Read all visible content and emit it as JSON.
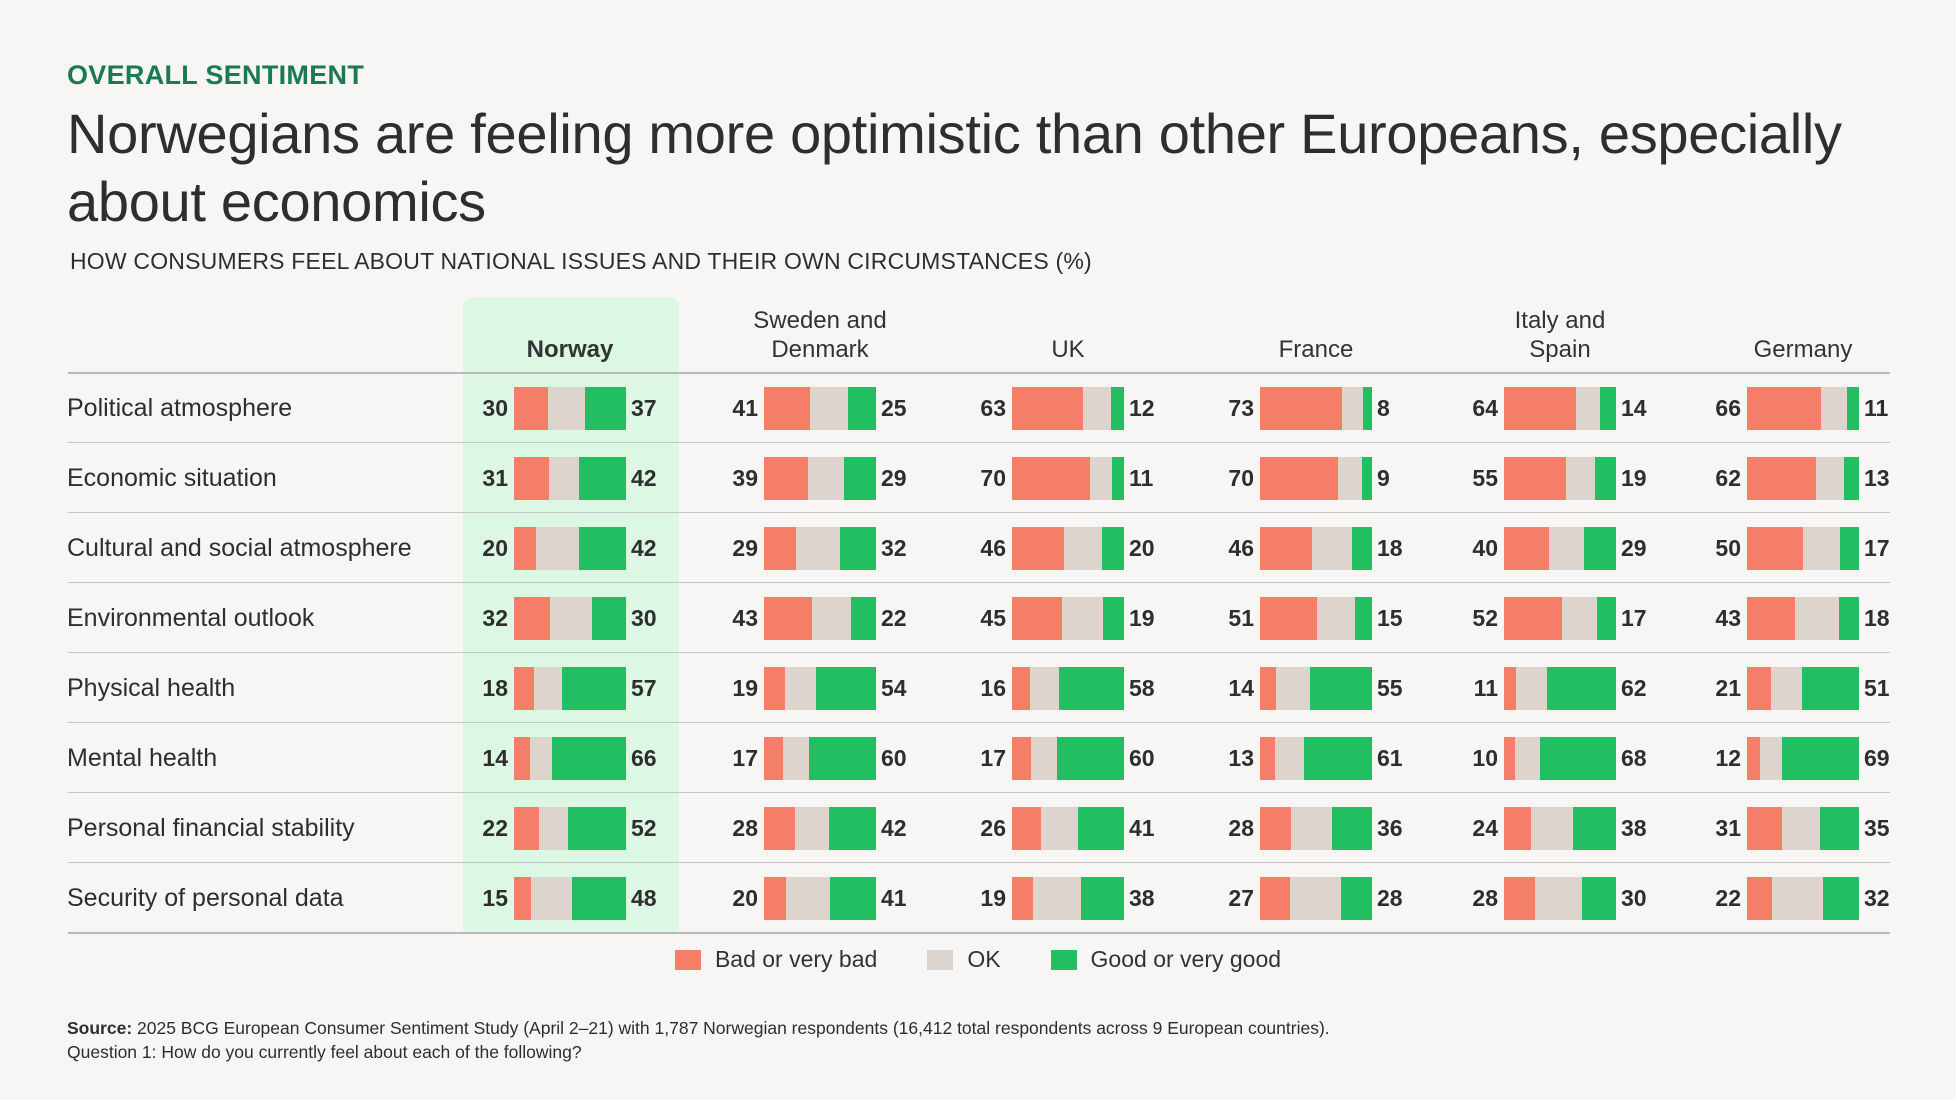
{
  "eyebrow": "OVERALL SENTIMENT",
  "title": "Norwegians are feeling more optimistic than other Europeans, especially about economics",
  "subtitle": "HOW CONSUMERS FEEL ABOUT NATIONAL ISSUES AND THEIR OWN CIRCUMSTANCES (%)",
  "colors": {
    "bad": "#f47e68",
    "ok": "#ddd5cd",
    "good": "#22bf62",
    "highlight": "#dcf7e3",
    "eyebrow": "#1a7a52"
  },
  "legend": [
    {
      "key": "bad",
      "label": "Bad or very bad"
    },
    {
      "key": "ok",
      "label": "OK"
    },
    {
      "key": "good",
      "label": "Good or very good"
    }
  ],
  "footer": {
    "source_label": "Source:",
    "source_text": " 2025 BCG European Consumer Sentiment Study (April 2–21) with 1,787 Norwegian respondents (16,412 total respondents across 9 European countries).",
    "question": "Question 1: How do you currently feel about each of the following?"
  },
  "chart_data": {
    "type": "bar",
    "subtype": "stacked-horizontal-100",
    "title": "Norwegians are feeling more optimistic than other Europeans, especially about economics",
    "subtitle": "HOW CONSUMERS FEEL ABOUT NATIONAL ISSUES AND THEIR OWN CIRCUMSTANCES (%)",
    "xlabel": "",
    "ylabel": "",
    "xlim": [
      0,
      100
    ],
    "legend_position": "bottom",
    "highlighted_column": "Norway",
    "columns": [
      "Norway",
      "Sweden and Denmark",
      "UK",
      "France",
      "Italy and Spain",
      "Germany"
    ],
    "categories": [
      "Political atmosphere",
      "Economic situation",
      "Cultural and social atmosphere",
      "Environmental outlook",
      "Physical health",
      "Mental health",
      "Personal financial stability",
      "Security of personal data"
    ],
    "series": [
      {
        "name": "Bad or very bad",
        "key": "bad",
        "values": [
          [
            30,
            41,
            63,
            73,
            64,
            66
          ],
          [
            31,
            39,
            70,
            70,
            55,
            62
          ],
          [
            20,
            29,
            46,
            46,
            40,
            50
          ],
          [
            32,
            43,
            45,
            51,
            52,
            43
          ],
          [
            18,
            19,
            16,
            14,
            11,
            21
          ],
          [
            14,
            17,
            17,
            13,
            10,
            12
          ],
          [
            22,
            28,
            26,
            28,
            24,
            31
          ],
          [
            15,
            20,
            19,
            27,
            28,
            22
          ]
        ]
      },
      {
        "name": "Good or very good",
        "key": "good",
        "values": [
          [
            37,
            25,
            12,
            8,
            14,
            11
          ],
          [
            42,
            29,
            11,
            9,
            19,
            13
          ],
          [
            42,
            32,
            20,
            18,
            29,
            17
          ],
          [
            30,
            22,
            19,
            15,
            17,
            18
          ],
          [
            57,
            54,
            58,
            55,
            62,
            51
          ],
          [
            66,
            60,
            60,
            61,
            68,
            69
          ],
          [
            52,
            42,
            41,
            36,
            38,
            35
          ],
          [
            48,
            41,
            38,
            28,
            30,
            32
          ]
        ]
      },
      {
        "name": "OK",
        "key": "ok",
        "note": "remainder to 100 (not labeled)"
      }
    ]
  }
}
